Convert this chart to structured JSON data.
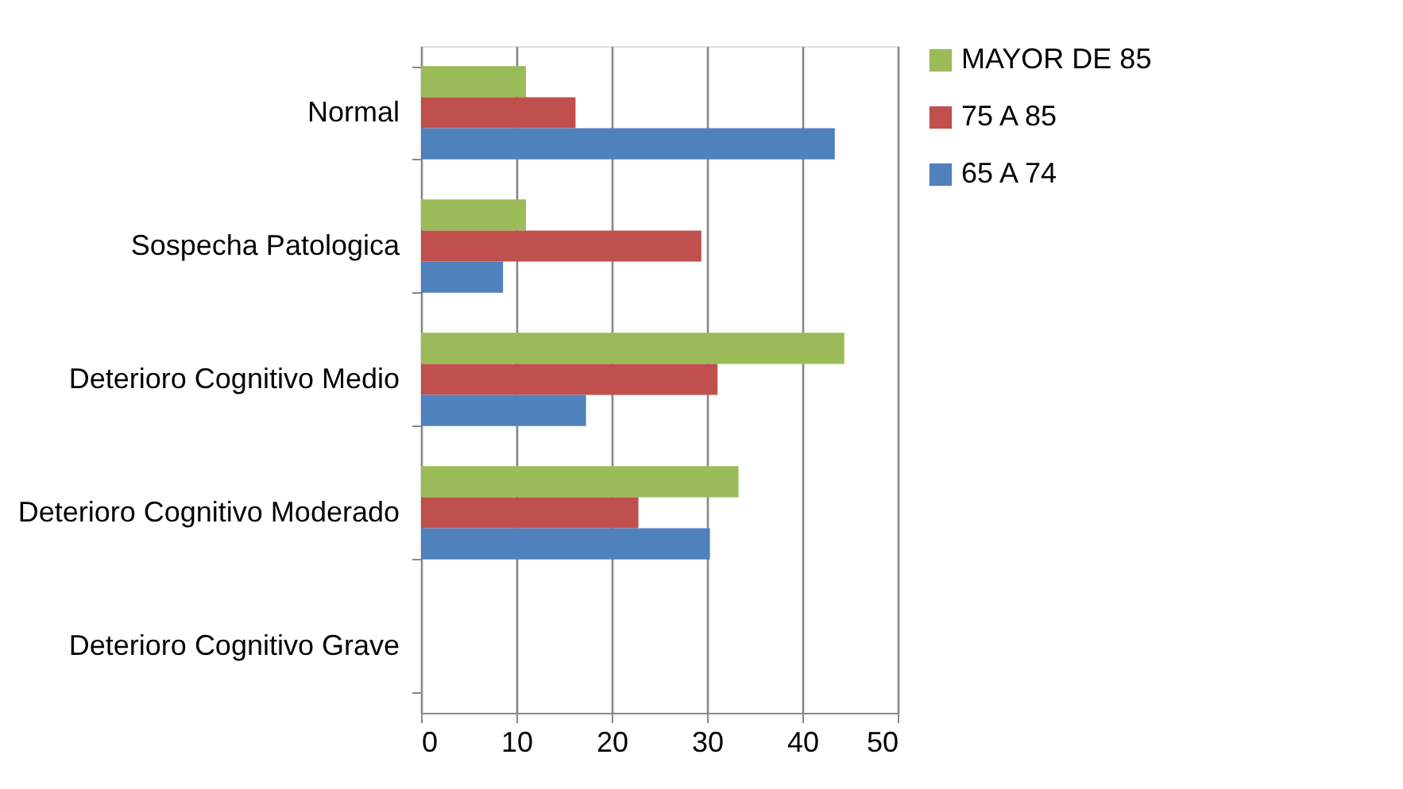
{
  "chart_data": {
    "type": "bar",
    "orientation": "horizontal",
    "categories": [
      "Normal",
      "Sospecha Patologica",
      "Deterioro Cognitivo Medio",
      "Deterioro Cognitivo Moderado",
      "Deterioro Cognitivo Grave"
    ],
    "series": [
      {
        "name": "MAYOR DE 85",
        "color": "#9bbb59",
        "values": [
          11.0,
          11.0,
          44.4,
          33.3,
          0
        ]
      },
      {
        "name": "75 A 85",
        "color": "#c0504d",
        "values": [
          16.2,
          29.4,
          31.1,
          22.8,
          0
        ]
      },
      {
        "name": "65 A 74",
        "color": "#4f81bd",
        "values": [
          43.4,
          8.6,
          17.3,
          30.3,
          0
        ]
      }
    ],
    "xlim": [
      0,
      50
    ],
    "xticks": [
      0,
      10,
      20,
      30,
      40,
      50
    ],
    "grid": "x",
    "legend": "right"
  }
}
